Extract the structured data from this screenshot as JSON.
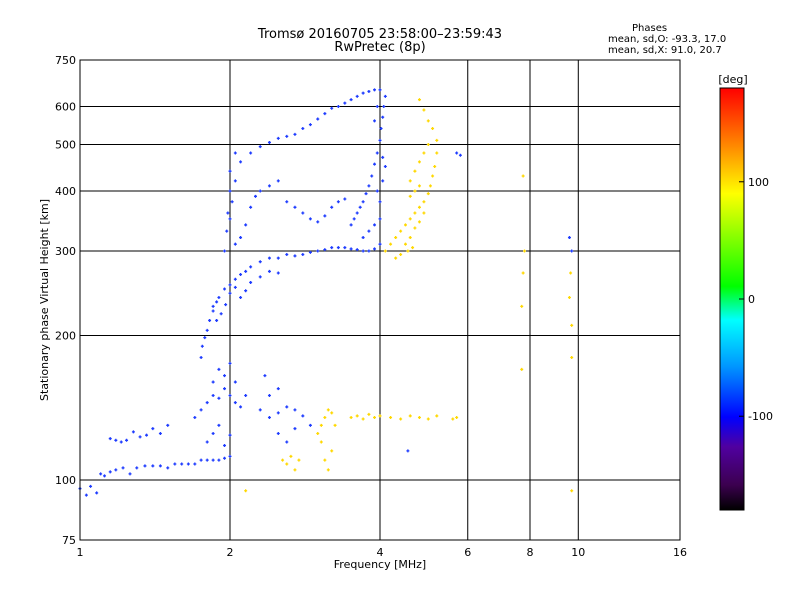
{
  "header": {
    "title_line1": "Tromsø 20160705 23:58:00–23:59:43",
    "title_line2": "RwPretec (8p)"
  },
  "phase_stats": {
    "title": "Phases",
    "line_o": "mean, sd,O: -93.3, 17.0",
    "line_x": "mean, sd,X:  91.0, 20.7"
  },
  "chart_data": {
    "type": "scatter",
    "title": "Tromsø 20160705 23:58:00–23:59:43",
    "subtitle": "RwPretec (8p)",
    "xlabel": "Frequency [MHz]",
    "ylabel": "Stationary phase Virtual Height [km]",
    "x_scale": "log",
    "y_scale": "log",
    "xlim": [
      1,
      16
    ],
    "ylim": [
      75,
      750
    ],
    "x_ticks": [
      1,
      2,
      4,
      6,
      8,
      10,
      16
    ],
    "y_ticks": [
      75,
      100,
      200,
      300,
      400,
      500,
      600,
      750
    ],
    "grid": true,
    "colorbar": {
      "label": "[deg]",
      "ticks": [
        100,
        0,
        -100
      ],
      "range": [
        -180,
        180
      ],
      "colors": [
        "#000000",
        "#3c0050",
        "#5000a0",
        "#0000ff",
        "#0096ff",
        "#00ffff",
        "#00ff00",
        "#ffff00",
        "#ff8c00",
        "#ff0000"
      ]
    },
    "series": [
      {
        "name": "O",
        "mean_phase": -93.3,
        "color": "#1e3cff",
        "points": [
          [
            1.0,
            96
          ],
          [
            1.03,
            93
          ],
          [
            1.05,
            97
          ],
          [
            1.08,
            94
          ],
          [
            1.1,
            103
          ],
          [
            1.12,
            102
          ],
          [
            1.15,
            104
          ],
          [
            1.18,
            105
          ],
          [
            1.22,
            106
          ],
          [
            1.26,
            103
          ],
          [
            1.3,
            106
          ],
          [
            1.35,
            107
          ],
          [
            1.4,
            107
          ],
          [
            1.45,
            107
          ],
          [
            1.5,
            106
          ],
          [
            1.55,
            108
          ],
          [
            1.6,
            108
          ],
          [
            1.65,
            108
          ],
          [
            1.7,
            108
          ],
          [
            1.75,
            110
          ],
          [
            1.8,
            110
          ],
          [
            1.85,
            110
          ],
          [
            1.9,
            110
          ],
          [
            1.95,
            111
          ],
          [
            2.0,
            112
          ],
          [
            1.15,
            122
          ],
          [
            1.18,
            121
          ],
          [
            1.21,
            120
          ],
          [
            1.24,
            121
          ],
          [
            1.28,
            126
          ],
          [
            1.32,
            123
          ],
          [
            1.36,
            124
          ],
          [
            1.4,
            128
          ],
          [
            1.45,
            125
          ],
          [
            1.5,
            130
          ],
          [
            1.7,
            135
          ],
          [
            1.75,
            140
          ],
          [
            1.8,
            145
          ],
          [
            1.85,
            150
          ],
          [
            1.9,
            148
          ],
          [
            1.95,
            155
          ],
          [
            2.0,
            150
          ],
          [
            2.05,
            145
          ],
          [
            2.1,
            142
          ],
          [
            2.15,
            150
          ],
          [
            1.8,
            120
          ],
          [
            1.85,
            125
          ],
          [
            1.9,
            130
          ],
          [
            1.95,
            118
          ],
          [
            2.0,
            124
          ],
          [
            1.85,
            160
          ],
          [
            1.9,
            170
          ],
          [
            1.95,
            165
          ],
          [
            2.0,
            175
          ],
          [
            2.05,
            160
          ],
          [
            1.75,
            180
          ],
          [
            1.76,
            190
          ],
          [
            1.78,
            198
          ],
          [
            1.8,
            205
          ],
          [
            1.82,
            215
          ],
          [
            1.85,
            225
          ],
          [
            1.88,
            235
          ],
          [
            1.9,
            240
          ],
          [
            1.95,
            250
          ],
          [
            2.0,
            255
          ],
          [
            2.05,
            262
          ],
          [
            2.1,
            268
          ],
          [
            2.15,
            272
          ],
          [
            2.2,
            278
          ],
          [
            2.3,
            285
          ],
          [
            2.4,
            290
          ],
          [
            2.5,
            290
          ],
          [
            2.6,
            295
          ],
          [
            2.7,
            293
          ],
          [
            2.8,
            295
          ],
          [
            2.9,
            298
          ],
          [
            3.0,
            300
          ],
          [
            3.1,
            302
          ],
          [
            3.2,
            305
          ],
          [
            3.3,
            305
          ],
          [
            3.4,
            305
          ],
          [
            3.5,
            303
          ],
          [
            3.6,
            302
          ],
          [
            3.7,
            300
          ],
          [
            3.8,
            300
          ],
          [
            3.9,
            303
          ],
          [
            4.0,
            310
          ],
          [
            1.85,
            230
          ],
          [
            1.88,
            215
          ],
          [
            1.92,
            222
          ],
          [
            1.96,
            232
          ],
          [
            2.0,
            245
          ],
          [
            2.05,
            252
          ],
          [
            2.1,
            240
          ],
          [
            2.15,
            248
          ],
          [
            2.2,
            258
          ],
          [
            2.3,
            265
          ],
          [
            2.4,
            272
          ],
          [
            2.5,
            270
          ],
          [
            1.95,
            300
          ],
          [
            1.97,
            330
          ],
          [
            2.0,
            350
          ],
          [
            2.02,
            380
          ],
          [
            2.05,
            420
          ],
          [
            2.0,
            400
          ],
          [
            1.98,
            360
          ],
          [
            2.05,
            310
          ],
          [
            2.1,
            320
          ],
          [
            2.15,
            340
          ],
          [
            2.2,
            370
          ],
          [
            2.25,
            390
          ],
          [
            2.3,
            400
          ],
          [
            2.4,
            410
          ],
          [
            2.5,
            420
          ],
          [
            2.0,
            440
          ],
          [
            2.05,
            480
          ],
          [
            2.1,
            460
          ],
          [
            2.2,
            480
          ],
          [
            2.3,
            495
          ],
          [
            2.4,
            505
          ],
          [
            2.5,
            515
          ],
          [
            2.6,
            520
          ],
          [
            2.7,
            525
          ],
          [
            2.8,
            540
          ],
          [
            2.9,
            550
          ],
          [
            3.0,
            565
          ],
          [
            3.1,
            580
          ],
          [
            3.2,
            595
          ],
          [
            3.3,
            600
          ],
          [
            3.4,
            610
          ],
          [
            3.5,
            620
          ],
          [
            3.6,
            630
          ],
          [
            3.7,
            640
          ],
          [
            3.8,
            645
          ],
          [
            3.9,
            650
          ],
          [
            2.6,
            380
          ],
          [
            2.7,
            370
          ],
          [
            2.8,
            360
          ],
          [
            2.9,
            350
          ],
          [
            3.0,
            345
          ],
          [
            3.1,
            355
          ],
          [
            3.2,
            370
          ],
          [
            3.3,
            380
          ],
          [
            3.4,
            385
          ],
          [
            3.5,
            340
          ],
          [
            3.55,
            350
          ],
          [
            3.6,
            360
          ],
          [
            3.65,
            370
          ],
          [
            3.7,
            380
          ],
          [
            3.75,
            395
          ],
          [
            3.8,
            410
          ],
          [
            3.85,
            430
          ],
          [
            3.9,
            455
          ],
          [
            3.95,
            480
          ],
          [
            4.0,
            510
          ],
          [
            4.02,
            540
          ],
          [
            4.05,
            570
          ],
          [
            4.07,
            600
          ],
          [
            4.1,
            630
          ],
          [
            4.0,
            650
          ],
          [
            3.95,
            600
          ],
          [
            3.9,
            560
          ],
          [
            3.7,
            320
          ],
          [
            3.8,
            330
          ],
          [
            3.9,
            340
          ],
          [
            4.0,
            350
          ],
          [
            4.0,
            380
          ],
          [
            3.95,
            400
          ],
          [
            4.05,
            420
          ],
          [
            4.1,
            450
          ],
          [
            4.05,
            470
          ],
          [
            2.3,
            140
          ],
          [
            2.4,
            135
          ],
          [
            2.5,
            138
          ],
          [
            2.6,
            142
          ],
          [
            2.7,
            140
          ],
          [
            2.8,
            136
          ],
          [
            2.9,
            130
          ],
          [
            2.5,
            125
          ],
          [
            2.6,
            120
          ],
          [
            2.7,
            128
          ],
          [
            2.4,
            150
          ],
          [
            2.5,
            155
          ],
          [
            2.35,
            165
          ],
          [
            5.7,
            480
          ],
          [
            5.8,
            475
          ],
          [
            4.55,
            115
          ],
          [
            9.6,
            320
          ],
          [
            9.7,
            300
          ]
        ]
      },
      {
        "name": "X",
        "mean_phase": 91.0,
        "color": "#ffd800",
        "points": [
          [
            4.1,
            300
          ],
          [
            4.2,
            310
          ],
          [
            4.3,
            320
          ],
          [
            4.4,
            330
          ],
          [
            4.5,
            340
          ],
          [
            4.6,
            350
          ],
          [
            4.7,
            360
          ],
          [
            4.8,
            370
          ],
          [
            4.9,
            380
          ],
          [
            5.0,
            395
          ],
          [
            5.05,
            410
          ],
          [
            5.1,
            430
          ],
          [
            5.15,
            450
          ],
          [
            5.2,
            480
          ],
          [
            5.2,
            510
          ],
          [
            5.1,
            540
          ],
          [
            5.0,
            560
          ],
          [
            4.9,
            590
          ],
          [
            4.8,
            620
          ],
          [
            4.5,
            310
          ],
          [
            4.6,
            320
          ],
          [
            4.7,
            335
          ],
          [
            4.8,
            345
          ],
          [
            4.9,
            360
          ],
          [
            4.3,
            290
          ],
          [
            4.4,
            295
          ],
          [
            4.55,
            300
          ],
          [
            4.65,
            305
          ],
          [
            4.6,
            420
          ],
          [
            4.7,
            440
          ],
          [
            4.8,
            460
          ],
          [
            4.9,
            480
          ],
          [
            5.0,
            500
          ],
          [
            4.8,
            410
          ],
          [
            4.7,
            400
          ],
          [
            4.6,
            390
          ],
          [
            3.0,
            125
          ],
          [
            3.05,
            130
          ],
          [
            3.1,
            135
          ],
          [
            3.15,
            140
          ],
          [
            3.2,
            138
          ],
          [
            3.25,
            130
          ],
          [
            3.1,
            110
          ],
          [
            3.15,
            105
          ],
          [
            3.2,
            115
          ],
          [
            3.05,
            120
          ],
          [
            2.55,
            110
          ],
          [
            2.6,
            108
          ],
          [
            2.65,
            112
          ],
          [
            2.7,
            105
          ],
          [
            2.75,
            110
          ],
          [
            3.5,
            135
          ],
          [
            3.6,
            136
          ],
          [
            3.7,
            134
          ],
          [
            3.8,
            137
          ],
          [
            3.9,
            135
          ],
          [
            4.0,
            136
          ],
          [
            4.2,
            135
          ],
          [
            4.4,
            134
          ],
          [
            4.6,
            136
          ],
          [
            4.8,
            135
          ],
          [
            5.0,
            134
          ],
          [
            5.2,
            136
          ],
          [
            5.6,
            134
          ],
          [
            5.7,
            135
          ],
          [
            7.7,
            170
          ],
          [
            7.7,
            230
          ],
          [
            7.75,
            270
          ],
          [
            7.8,
            300
          ],
          [
            7.75,
            430
          ],
          [
            9.7,
            180
          ],
          [
            9.7,
            210
          ],
          [
            9.6,
            240
          ],
          [
            9.65,
            270
          ],
          [
            9.7,
            95
          ],
          [
            2.15,
            95
          ]
        ]
      }
    ]
  }
}
